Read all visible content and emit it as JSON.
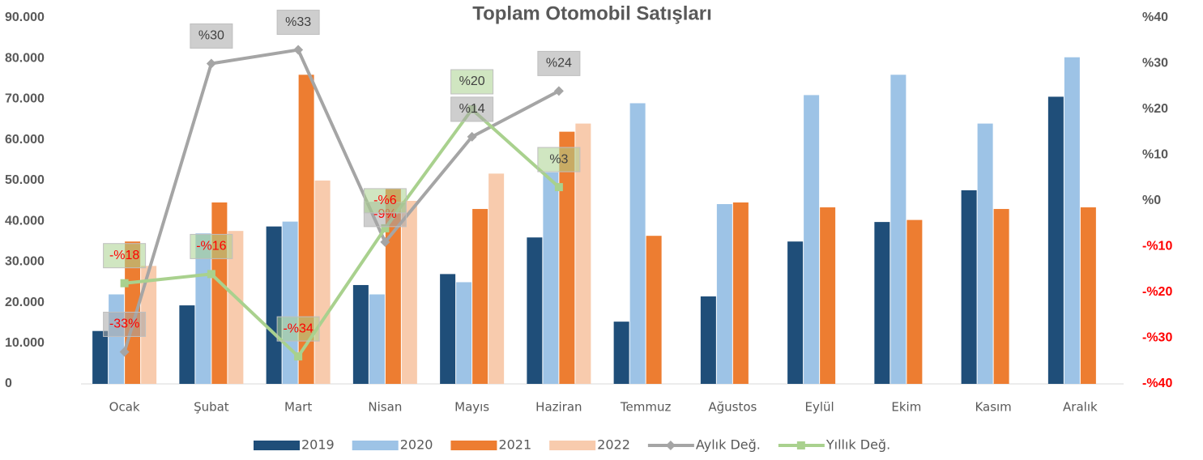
{
  "chart_data": {
    "type": "bar-line",
    "title": "Toplam Otomobil Satışları",
    "categories": [
      "Ocak",
      "Şubat",
      "Mart",
      "Nisan",
      "Mayıs",
      "Haziran",
      "Temmuz",
      "Ağustos",
      "Eylül",
      "Ekim",
      "Kasım",
      "Aralık"
    ],
    "series": [
      {
        "name": "2019",
        "type": "bar",
        "color": "#1f4e79",
        "values": [
          13000,
          19300,
          38700,
          24300,
          27000,
          36000,
          15300,
          21500,
          35000,
          39800,
          47600,
          70600
        ]
      },
      {
        "name": "2020",
        "type": "bar",
        "color": "#9dc3e6",
        "values": [
          22000,
          37000,
          39900,
          22000,
          25000,
          52000,
          69000,
          44200,
          71000,
          76000,
          64000,
          80300
        ]
      },
      {
        "name": "2021",
        "type": "bar",
        "color": "#ed7d31",
        "values": [
          35000,
          44600,
          76000,
          48000,
          43000,
          62000,
          36400,
          44600,
          43400,
          40300,
          43000,
          43400
        ]
      },
      {
        "name": "2022",
        "type": "bar",
        "color": "#f8cbad",
        "values": [
          29000,
          37600,
          50000,
          45000,
          51700,
          64000,
          null,
          null,
          null,
          null,
          null,
          null
        ]
      },
      {
        "name": "Aylık Değ.",
        "type": "line",
        "axis": "y2",
        "color": "#a5a5a5",
        "marker": "diamond",
        "values": [
          -33,
          30,
          33,
          -9,
          14,
          24,
          null,
          null,
          null,
          null,
          null,
          null
        ],
        "value_labels": [
          "-33%",
          "%30",
          "%33",
          "-9%",
          "%14",
          "%24",
          null,
          null,
          null,
          null,
          null,
          null
        ]
      },
      {
        "name": "Yıllık Değ.",
        "type": "line",
        "axis": "y2",
        "color": "#a9d18e",
        "marker": "square",
        "values": [
          -18,
          -16,
          -34,
          -6,
          20,
          3,
          null,
          null,
          null,
          null,
          null,
          null
        ],
        "value_labels": [
          "-%18",
          "-%16",
          "-%34",
          "-%6",
          "%20",
          "%3",
          null,
          null,
          null,
          null,
          null,
          null
        ]
      }
    ],
    "ylim": [
      0,
      90000
    ],
    "yticks": [
      0,
      {
        "value": 10000,
        "label": "10.000"
      },
      {
        "value": 20000,
        "label": "20.000"
      },
      {
        "value": 30000,
        "label": "30.000"
      },
      {
        "value": 40000,
        "label": "40.000"
      },
      {
        "value": 50000,
        "label": "50.000"
      },
      {
        "value": 60000,
        "label": "60.000"
      },
      {
        "value": 70000,
        "label": "70.000"
      },
      {
        "value": 80000,
        "label": "80.000"
      },
      {
        "value": 90000,
        "label": "90.000"
      }
    ],
    "y2lim": [
      -40,
      40
    ],
    "y2ticks": [
      {
        "value": -40,
        "label": "-%40"
      },
      {
        "value": -30,
        "label": "-%30"
      },
      {
        "value": -20,
        "label": "-%20"
      },
      {
        "value": -10,
        "label": "-%10"
      },
      {
        "value": 0,
        "label": "%0"
      },
      {
        "value": 10,
        "label": "%10"
      },
      {
        "value": 20,
        "label": "%20"
      },
      {
        "value": 30,
        "label": "%30"
      },
      {
        "value": 40,
        "label": "%40"
      }
    ],
    "legend": "bottom"
  }
}
